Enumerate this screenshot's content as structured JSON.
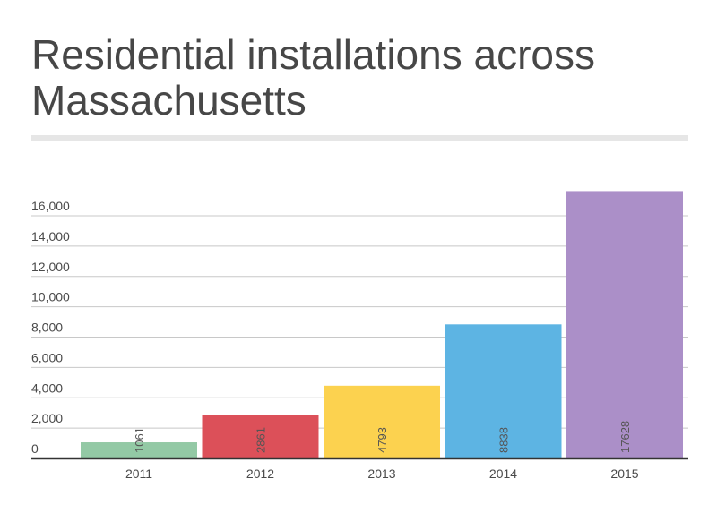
{
  "title": "Residential installations across Massachusetts",
  "chart_data": {
    "type": "bar",
    "title": "Residential installations across Massachusetts",
    "categories": [
      "2011",
      "2012",
      "2013",
      "2014",
      "2015"
    ],
    "values": [
      1061,
      2861,
      4793,
      8838,
      17628
    ],
    "data_labels": [
      "1061",
      "2861",
      "4793",
      "8838",
      "17628"
    ],
    "bar_colors": [
      "#93c9a5",
      "#dc5059",
      "#fcd24f",
      "#5db4e3",
      "#ab8fc8"
    ],
    "xlabel": "",
    "ylabel": "",
    "ylim": [
      0,
      18000
    ],
    "yticks": [
      0,
      2000,
      4000,
      6000,
      8000,
      10000,
      12000,
      14000,
      16000
    ],
    "ytick_labels": [
      "0",
      "2,000",
      "4,000",
      "6,000",
      "8,000",
      "10,000",
      "12,000",
      "14,000",
      "16,000"
    ],
    "grid": true,
    "legend": "none"
  }
}
